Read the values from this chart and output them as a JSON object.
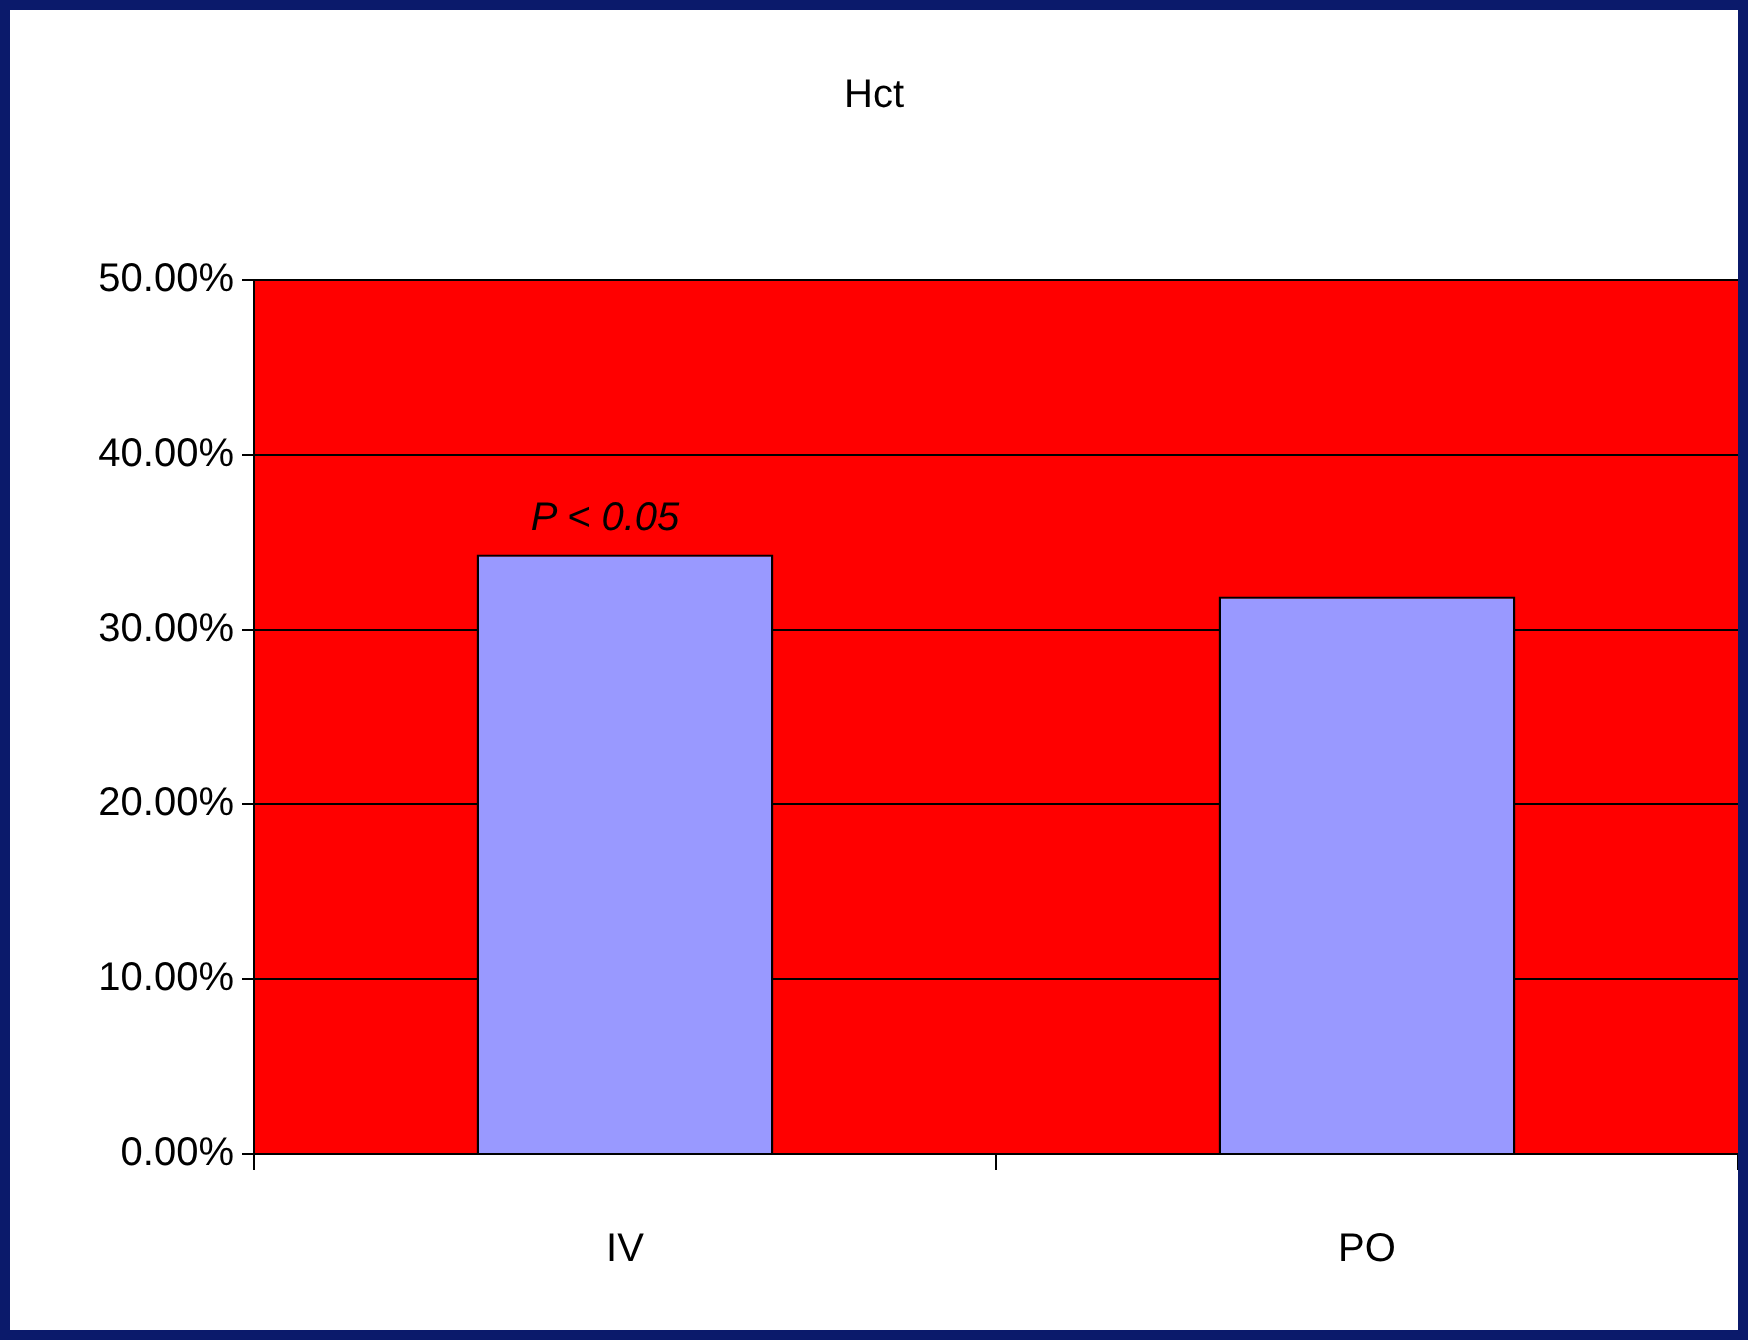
{
  "chart_data": {
    "type": "bar",
    "title": "Hct",
    "categories": [
      "IV",
      "PO"
    ],
    "values": [
      34.3,
      31.9
    ],
    "color": "#9999ff",
    "ylim": [
      0,
      50
    ],
    "yticks": [
      {
        "value": 0,
        "label": "0.00%"
      },
      {
        "value": 10,
        "label": "10.00%"
      },
      {
        "value": 20,
        "label": "20.00%"
      },
      {
        "value": 30,
        "label": "30.00%"
      },
      {
        "value": 40,
        "label": "40.00%"
      },
      {
        "value": 50,
        "label": "50.00%"
      }
    ],
    "grid": "y",
    "annotations": [
      {
        "text": "P < 0.05",
        "x": "IV",
        "y": 34.3
      }
    ]
  }
}
